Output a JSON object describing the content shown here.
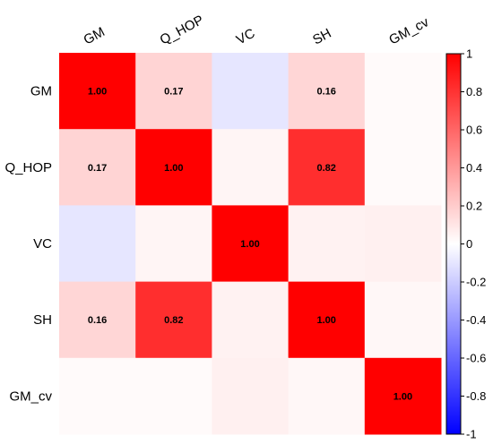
{
  "chart_data": {
    "type": "heatmap",
    "variables": [
      "GM",
      "Q_HOP",
      "VC",
      "SH",
      "GM_cv"
    ],
    "matrix": [
      [
        1.0,
        0.17,
        -0.1,
        0.16,
        0.02
      ],
      [
        0.17,
        1.0,
        0.04,
        0.82,
        0.02
      ],
      [
        -0.1,
        0.04,
        1.0,
        0.05,
        0.06
      ],
      [
        0.16,
        0.82,
        0.05,
        1.0,
        0.03
      ],
      [
        0.02,
        0.02,
        0.06,
        0.03,
        1.0
      ]
    ],
    "cell_labels": [
      [
        "1.00",
        "0.17",
        "",
        "0.16",
        ""
      ],
      [
        "0.17",
        "1.00",
        "",
        "0.82",
        ""
      ],
      [
        "",
        "",
        "1.00",
        "",
        ""
      ],
      [
        "0.16",
        "0.82",
        "",
        "1.00",
        ""
      ],
      [
        "",
        "",
        "",
        "",
        "1.00"
      ]
    ],
    "colorbar": {
      "range": [
        -1,
        1
      ],
      "ticks": [
        "1",
        "0.8",
        "0.6",
        "0.4",
        "0.2",
        "0",
        "-0.2",
        "-0.4",
        "-0.6",
        "-0.8",
        "-1"
      ],
      "colors": {
        "low": "#0000ff",
        "mid": "#ffffff",
        "high": "#ff0000"
      }
    },
    "legend_position": "right",
    "grid": false
  }
}
